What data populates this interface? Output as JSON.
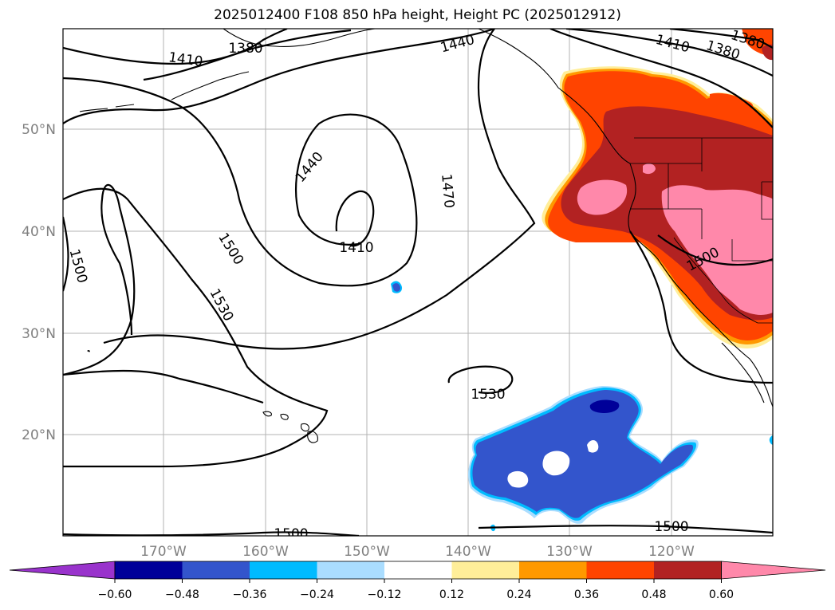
{
  "title": "2025012400 F108 850 hPa height, Height PC (2025012912)",
  "map": {
    "lat_labels": [
      "50°N",
      "40°N",
      "30°N",
      "20°N"
    ],
    "lon_labels": [
      "170°W",
      "160°W",
      "150°W",
      "140°W",
      "130°W",
      "120°W"
    ],
    "contour_labels": [
      "1380",
      "1410",
      "1440",
      "1440",
      "1410",
      "1380",
      "1380",
      "1410",
      "1470",
      "1500",
      "1530",
      "1500",
      "1500",
      "1530",
      "1500",
      "1500"
    ]
  },
  "colorbar": {
    "colors": [
      "#9933cc",
      "#000099",
      "#3355cc",
      "#00bbff",
      "#aaddff",
      "#ffffff",
      "#ffee99",
      "#ff9900",
      "#ff4400",
      "#b22222",
      "#ff88aa"
    ],
    "ticks": [
      "−0.60",
      "−0.48",
      "−0.36",
      "−0.24",
      "−0.12",
      "0.12",
      "0.24",
      "0.36",
      "0.48",
      "0.60"
    ]
  }
}
